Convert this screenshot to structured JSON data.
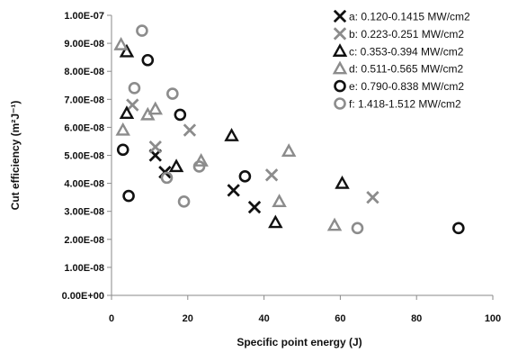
{
  "chart_data": {
    "type": "scatter",
    "title": "",
    "xlabel": "Specific point energy (J)",
    "ylabel": "Cut efficiency (m²J⁻¹)",
    "xlim": [
      0,
      100
    ],
    "ylim": [
      0,
      1e-07
    ],
    "xticks": [
      "0",
      "20",
      "40",
      "60",
      "80",
      "100"
    ],
    "yticks": [
      "0.00E+00",
      "1.00E-08",
      "2.00E-08",
      "3.00E-08",
      "4.00E-08",
      "5.00E-08",
      "6.00E-08",
      "7.00E-08",
      "8.00E-08",
      "9.00E-08",
      "1.00E-07"
    ],
    "grid": false,
    "legend_position": "top-right",
    "series": [
      {
        "name": "a: 0.120-0.1415 MW/cm2",
        "marker": "x",
        "color": "#111111",
        "points": [
          [
            11.5,
            5e-08
          ],
          [
            14,
            4.4e-08
          ],
          [
            32,
            3.75e-08
          ],
          [
            37.5,
            3.15e-08
          ]
        ]
      },
      {
        "name": "b: 0.223-0.251 MW/cm2",
        "marker": "x",
        "color": "#8c8c8c",
        "points": [
          [
            5.5,
            6.8e-08
          ],
          [
            11.5,
            5.3e-08
          ],
          [
            20.5,
            5.9e-08
          ],
          [
            42,
            4.3e-08
          ],
          [
            68.5,
            3.5e-08
          ]
        ]
      },
      {
        "name": "c: 0.353-0.394 MW/cm2",
        "marker": "triangle",
        "color": "#111111",
        "points": [
          [
            4,
            8.7e-08
          ],
          [
            4,
            6.5e-08
          ],
          [
            17,
            4.6e-08
          ],
          [
            31.5,
            5.7e-08
          ],
          [
            43,
            2.6e-08
          ],
          [
            60.5,
            4e-08
          ]
        ]
      },
      {
        "name": "d: 0.511-0.565 MW/cm2",
        "marker": "triangle",
        "color": "#8c8c8c",
        "points": [
          [
            2.5,
            8.95e-08
          ],
          [
            3,
            5.9e-08
          ],
          [
            9.5,
            6.45e-08
          ],
          [
            11.5,
            6.65e-08
          ],
          [
            23.5,
            4.8e-08
          ],
          [
            44,
            3.35e-08
          ],
          [
            46.5,
            5.15e-08
          ],
          [
            58.5,
            2.5e-08
          ]
        ]
      },
      {
        "name": "e: 0.790-0.838 MW/cm2",
        "marker": "circle",
        "color": "#111111",
        "points": [
          [
            9.5,
            8.4e-08
          ],
          [
            3,
            5.2e-08
          ],
          [
            4.5,
            3.55e-08
          ],
          [
            18,
            6.45e-08
          ],
          [
            35,
            4.25e-08
          ],
          [
            91,
            2.4e-08
          ]
        ]
      },
      {
        "name": "f: 1.418-1.512 MW/cm2",
        "marker": "circle",
        "color": "#8c8c8c",
        "points": [
          [
            8,
            9.45e-08
          ],
          [
            6,
            7.4e-08
          ],
          [
            16,
            7.2e-08
          ],
          [
            14.5,
            4.2e-08
          ],
          [
            19,
            3.35e-08
          ],
          [
            23,
            4.6e-08
          ],
          [
            64.5,
            2.4e-08
          ]
        ]
      }
    ]
  }
}
